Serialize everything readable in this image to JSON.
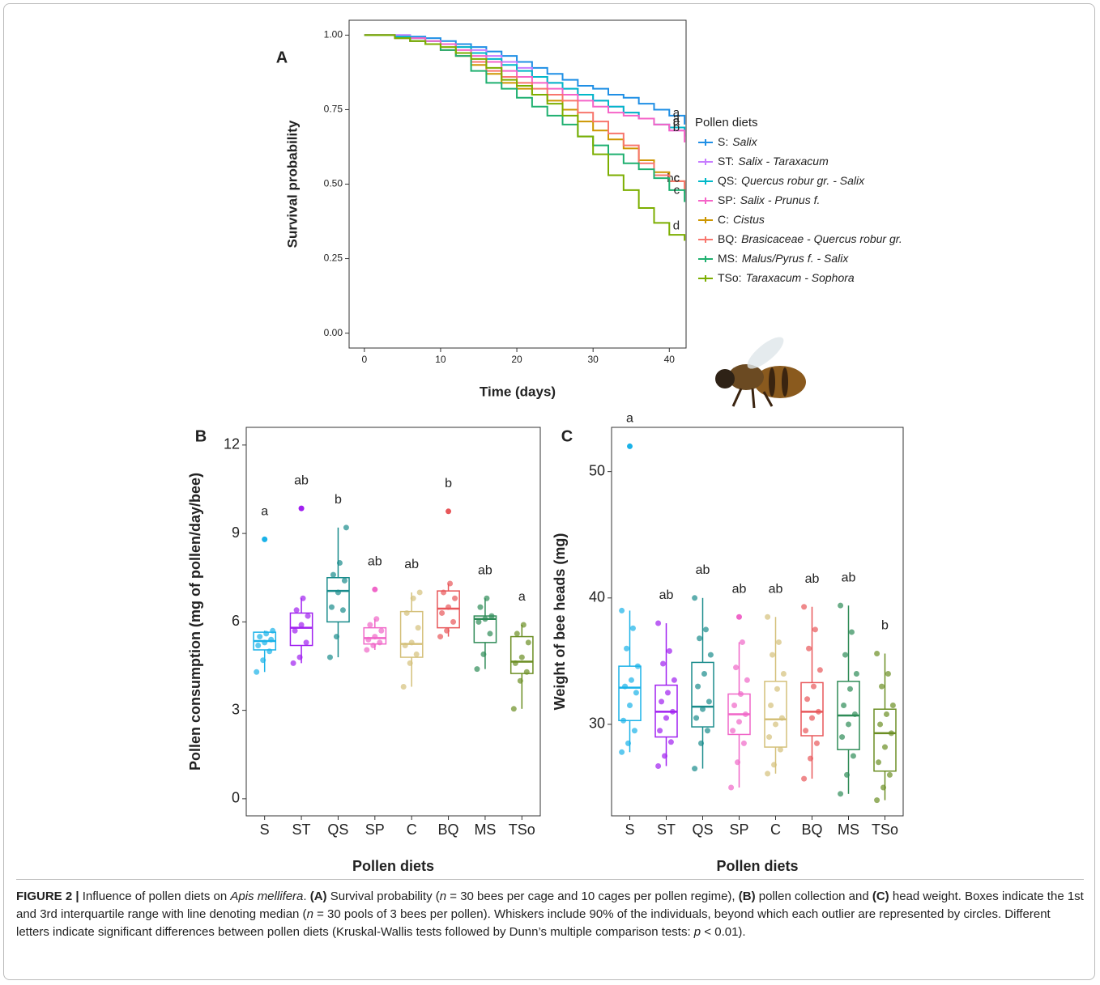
{
  "chart_data": [
    {
      "type": "line",
      "step": true,
      "panel": "A",
      "x_label": "Time (days)",
      "y_label": "Survival probability",
      "xlim": [
        -2,
        42.2
      ],
      "ylim": [
        -0.05,
        1.05
      ],
      "xticks": [
        0,
        10,
        20,
        30,
        40
      ],
      "yticks": [
        {
          "value": 0,
          "label": "0.00"
        },
        {
          "value": 0.25,
          "label": "0.25"
        },
        {
          "value": 0.5,
          "label": "0.50"
        },
        {
          "value": 0.75,
          "label": "0.75"
        },
        {
          "value": 1,
          "label": "1.00"
        }
      ],
      "legend_title": "Pollen diets",
      "x": [
        0,
        2,
        4,
        6,
        8,
        10,
        12,
        14,
        16,
        18,
        20,
        22,
        24,
        26,
        28,
        30,
        32,
        34,
        36,
        38,
        40,
        42
      ],
      "series": [
        {
          "prefix": "S:",
          "name": "Salix",
          "letter": "a",
          "color": "#1f8fe5",
          "values": [
            1,
            1,
            1,
            0.995,
            0.99,
            0.98,
            0.97,
            0.96,
            0.945,
            0.93,
            0.91,
            0.89,
            0.87,
            0.85,
            0.83,
            0.82,
            0.8,
            0.79,
            0.77,
            0.75,
            0.73,
            0.7
          ]
        },
        {
          "prefix": "ST:",
          "name": "Salix - Taraxacum",
          "letter": "a",
          "color": "#c77cff",
          "values": [
            1,
            1,
            1,
            0.99,
            0.98,
            0.97,
            0.96,
            0.95,
            0.93,
            0.91,
            0.89,
            0.86,
            0.84,
            0.82,
            0.8,
            0.78,
            0.76,
            0.74,
            0.72,
            0.7,
            0.68,
            0.66
          ]
        },
        {
          "prefix": "QS:",
          "name": "Quercus robur gr. - Salix",
          "letter": "a",
          "color": "#00b8c8",
          "values": [
            1,
            1,
            0.995,
            0.99,
            0.98,
            0.97,
            0.96,
            0.94,
            0.92,
            0.9,
            0.88,
            0.86,
            0.84,
            0.82,
            0.8,
            0.78,
            0.76,
            0.74,
            0.72,
            0.7,
            0.69,
            0.68
          ]
        },
        {
          "prefix": "SP:",
          "name": "Salix - Prunus f.",
          "letter": "b",
          "color": "#f564c8",
          "values": [
            1,
            1,
            0.99,
            0.99,
            0.98,
            0.97,
            0.95,
            0.93,
            0.91,
            0.88,
            0.86,
            0.84,
            0.82,
            0.8,
            0.78,
            0.76,
            0.74,
            0.73,
            0.72,
            0.7,
            0.68,
            0.64
          ]
        },
        {
          "prefix": "C:",
          "name": "Cistus",
          "letter": "bc",
          "color": "#cd9600",
          "values": [
            1,
            1,
            0.99,
            0.98,
            0.97,
            0.95,
            0.93,
            0.9,
            0.87,
            0.84,
            0.82,
            0.8,
            0.78,
            0.75,
            0.71,
            0.68,
            0.65,
            0.62,
            0.58,
            0.54,
            0.51,
            0.48
          ]
        },
        {
          "prefix": "BQ:",
          "name": "Brasicaceae - Quercus robur gr.",
          "letter": "c",
          "color": "#f8766d",
          "values": [
            1,
            1,
            0.99,
            0.98,
            0.97,
            0.95,
            0.93,
            0.91,
            0.88,
            0.86,
            0.84,
            0.82,
            0.8,
            0.78,
            0.74,
            0.71,
            0.67,
            0.63,
            0.57,
            0.53,
            0.51,
            0.47
          ]
        },
        {
          "prefix": "MS:",
          "name": "Malus/Pyrus f. - Salix",
          "letter": "c",
          "color": "#1fb070",
          "values": [
            1,
            1,
            0.99,
            0.98,
            0.97,
            0.95,
            0.93,
            0.88,
            0.84,
            0.82,
            0.79,
            0.76,
            0.73,
            0.7,
            0.66,
            0.63,
            0.6,
            0.57,
            0.55,
            0.52,
            0.48,
            0.44
          ]
        },
        {
          "prefix": "TSo:",
          "name": "Taraxacum - Sophora",
          "letter": "d",
          "color": "#7cae00",
          "values": [
            1,
            1,
            0.99,
            0.98,
            0.97,
            0.96,
            0.94,
            0.92,
            0.89,
            0.85,
            0.83,
            0.8,
            0.77,
            0.73,
            0.66,
            0.6,
            0.53,
            0.48,
            0.42,
            0.37,
            0.33,
            0.31
          ]
        }
      ]
    },
    {
      "type": "box",
      "panel": "B",
      "x_label": "Pollen diets",
      "y_label": "Pollen consumption (mg of pollen/day/bee)",
      "ylim": [
        -0.58,
        12.6
      ],
      "yticks": [
        0,
        3,
        6,
        9,
        12
      ],
      "categories": [
        "S",
        "ST",
        "QS",
        "SP",
        "C",
        "BQ",
        "MS",
        "TSo"
      ],
      "colors": [
        "#1ab2e8",
        "#a020f0",
        "#1a8c8c",
        "#f066c8",
        "#d4c07a",
        "#e8575a",
        "#2e8b57",
        "#6b8e23"
      ],
      "letters": [
        "a",
        "ab",
        "b",
        "ab",
        "ab",
        "b",
        "ab",
        "a"
      ],
      "boxes": [
        {
          "whisker_low": 4.3,
          "q1": 5.05,
          "median": 5.35,
          "q3": 5.65,
          "whisker_high": 5.7,
          "outliers": [
            8.8
          ],
          "points": [
            4.3,
            4.7,
            5.0,
            5.2,
            5.3,
            5.4,
            5.5,
            5.6,
            5.7
          ]
        },
        {
          "whisker_low": 4.6,
          "q1": 5.2,
          "median": 5.8,
          "q3": 6.3,
          "whisker_high": 6.8,
          "outliers": [
            9.85
          ],
          "points": [
            4.6,
            4.8,
            5.3,
            5.7,
            5.9,
            6.2,
            6.4,
            6.8
          ]
        },
        {
          "whisker_low": 4.8,
          "q1": 6.0,
          "median": 7.05,
          "q3": 7.5,
          "whisker_high": 9.2,
          "outliers": [],
          "points": [
            4.8,
            5.5,
            6.4,
            6.5,
            7.0,
            7.4,
            7.6,
            8.0,
            9.2
          ]
        },
        {
          "whisker_low": 5.05,
          "q1": 5.25,
          "median": 5.45,
          "q3": 5.8,
          "whisker_high": 6.1,
          "outliers": [
            7.1
          ],
          "points": [
            5.05,
            5.2,
            5.3,
            5.4,
            5.5,
            5.7,
            5.9,
            6.1
          ]
        },
        {
          "whisker_low": 3.8,
          "q1": 4.8,
          "median": 5.25,
          "q3": 6.35,
          "whisker_high": 7.0,
          "outliers": [],
          "points": [
            3.8,
            4.6,
            4.9,
            5.2,
            5.3,
            5.8,
            6.3,
            6.8,
            7.0
          ]
        },
        {
          "whisker_low": 5.5,
          "q1": 5.8,
          "median": 6.45,
          "q3": 7.05,
          "whisker_high": 7.3,
          "outliers": [
            9.75
          ],
          "points": [
            5.5,
            5.7,
            6.0,
            6.3,
            6.5,
            6.8,
            7.0,
            7.3
          ]
        },
        {
          "whisker_low": 4.4,
          "q1": 5.3,
          "median": 6.1,
          "q3": 6.2,
          "whisker_high": 6.8,
          "outliers": [],
          "points": [
            4.4,
            4.9,
            5.6,
            6.0,
            6.1,
            6.2,
            6.5,
            6.8
          ]
        },
        {
          "whisker_low": 3.05,
          "q1": 4.25,
          "median": 4.65,
          "q3": 5.5,
          "whisker_high": 5.9,
          "outliers": [],
          "points": [
            3.05,
            4.0,
            4.3,
            4.6,
            4.8,
            5.3,
            5.6,
            5.9
          ]
        }
      ]
    },
    {
      "type": "box",
      "panel": "C",
      "x_label": "Pollen diets",
      "y_label": "Weight of bee heads (mg)",
      "ylim": [
        22.76,
        53.5
      ],
      "yticks": [
        30,
        40,
        50
      ],
      "categories": [
        "S",
        "ST",
        "QS",
        "SP",
        "C",
        "BQ",
        "MS",
        "TSo"
      ],
      "colors": [
        "#1ab2e8",
        "#a020f0",
        "#1a8c8c",
        "#f066c8",
        "#d4c07a",
        "#e8575a",
        "#2e8b57",
        "#6b8e23"
      ],
      "letters": [
        "a",
        "ab",
        "ab",
        "ab",
        "ab",
        "ab",
        "ab",
        "b"
      ],
      "boxes": [
        {
          "whisker_low": 27.8,
          "q1": 30.3,
          "median": 32.9,
          "q3": 34.6,
          "whisker_high": 39.0,
          "outliers": [
            52
          ],
          "points": [
            27.8,
            28.5,
            29.5,
            30.3,
            31.5,
            32.5,
            33.0,
            33.5,
            34.6,
            36.0,
            37.6,
            39.0
          ]
        },
        {
          "whisker_low": 26.7,
          "q1": 29.0,
          "median": 31.0,
          "q3": 33.1,
          "whisker_high": 38.0,
          "outliers": [],
          "points": [
            26.7,
            27.5,
            28.6,
            29.5,
            30.5,
            31.0,
            31.8,
            32.5,
            33.5,
            34.8,
            35.8,
            38.0
          ]
        },
        {
          "whisker_low": 26.5,
          "q1": 29.8,
          "median": 31.4,
          "q3": 34.9,
          "whisker_high": 40.0,
          "outliers": [],
          "points": [
            26.5,
            28.5,
            29.5,
            30.5,
            31.2,
            31.8,
            33.0,
            34.0,
            35.5,
            36.8,
            37.5,
            40.0
          ]
        },
        {
          "whisker_low": 25.0,
          "q1": 29.2,
          "median": 30.8,
          "q3": 32.4,
          "whisker_high": 36.5,
          "outliers": [
            38.5
          ],
          "points": [
            25.0,
            27.0,
            28.5,
            29.5,
            30.2,
            30.8,
            31.5,
            32.4,
            33.5,
            34.5,
            36.5
          ]
        },
        {
          "whisker_low": 26.1,
          "q1": 28.2,
          "median": 30.4,
          "q3": 33.4,
          "whisker_high": 38.5,
          "outliers": [],
          "points": [
            26.1,
            26.8,
            28.0,
            29.0,
            30.0,
            30.5,
            31.5,
            32.8,
            34.0,
            35.5,
            36.5,
            38.5
          ]
        },
        {
          "whisker_low": 25.7,
          "q1": 29.1,
          "median": 31.0,
          "q3": 33.3,
          "whisker_high": 39.3,
          "outliers": [],
          "points": [
            25.7,
            27.3,
            28.5,
            29.5,
            30.5,
            31.0,
            32.0,
            33.0,
            34.3,
            36.0,
            37.5,
            39.3
          ]
        },
        {
          "whisker_low": 24.5,
          "q1": 28.0,
          "median": 30.7,
          "q3": 33.4,
          "whisker_high": 39.4,
          "outliers": [],
          "points": [
            24.5,
            26.0,
            27.5,
            29.0,
            30.0,
            30.8,
            31.5,
            32.8,
            34.0,
            35.5,
            37.3,
            39.4
          ]
        },
        {
          "whisker_low": 24.0,
          "q1": 26.3,
          "median": 29.3,
          "q3": 31.2,
          "whisker_high": 35.6,
          "outliers": [],
          "points": [
            24.0,
            25.0,
            26.0,
            27.0,
            28.2,
            29.3,
            30.0,
            30.8,
            31.5,
            33.0,
            34.0,
            35.6
          ]
        }
      ]
    }
  ],
  "caption": [
    {
      "text": "FIGURE 2 |",
      "style": "b"
    },
    {
      "text": " Influence of pollen diets on "
    },
    {
      "text": "Apis mellifera",
      "style": "i"
    },
    {
      "text": ". "
    },
    {
      "text": "(A)",
      "style": "b"
    },
    {
      "text": " Survival probability ("
    },
    {
      "text": "n",
      "style": "i"
    },
    {
      "text": " = 30 bees per cage and 10 cages per pollen regime), "
    },
    {
      "text": "(B)",
      "style": "b"
    },
    {
      "text": " pollen collection and "
    },
    {
      "text": "(C)",
      "style": "b"
    },
    {
      "text": " head weight. Boxes indicate the 1st and 3rd interquartile range with line denoting median ("
    },
    {
      "text": "n",
      "style": "i"
    },
    {
      "text": " = 30 pools of 3 bees per pollen). Whiskers include 90% of the individuals, beyond which each outlier are represented by circles. Different letters indicate significant differences between pollen diets (Kruskal-Wallis tests followed by Dunn’s multiple comparison tests: "
    },
    {
      "text": "p",
      "style": "i"
    },
    {
      "text": " < 0.01)."
    }
  ]
}
